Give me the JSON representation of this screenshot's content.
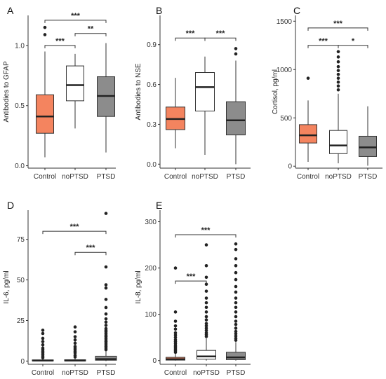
{
  "chart_data": [
    {
      "type": "box",
      "panel_label": "A",
      "ylabel": "Antibodies to GFAP",
      "categories": [
        "Control",
        "noPTSD",
        "PTSD"
      ],
      "yticks": [
        "0.0",
        "0.5",
        "1.0"
      ],
      "ytick_values": [
        0.0,
        0.5,
        1.0
      ],
      "ylim": [
        -0.02,
        1.25
      ],
      "grid": false,
      "series": [
        {
          "category": "Control",
          "color": "#f4845f",
          "whisker_low": 0.07,
          "q1": 0.27,
          "median": 0.41,
          "q3": 0.59,
          "whisker_high": 0.95,
          "outliers": [
            1.09,
            1.15
          ]
        },
        {
          "category": "noPTSD",
          "color": "#ffffff",
          "whisker_low": 0.31,
          "q1": 0.54,
          "median": 0.67,
          "q3": 0.83,
          "whisker_high": 0.93,
          "outliers": []
        },
        {
          "category": "PTSD",
          "color": "#8c8c8c",
          "whisker_low": 0.11,
          "q1": 0.41,
          "median": 0.58,
          "q3": 0.74,
          "whisker_high": 1.02,
          "outliers": []
        }
      ],
      "significance": [
        {
          "from": "Control",
          "to": "PTSD",
          "label": "***",
          "y": 1.21
        },
        {
          "from": "Control",
          "to": "noPTSD",
          "label": "***",
          "y": 1.0
        },
        {
          "from": "noPTSD",
          "to": "PTSD",
          "label": "**",
          "y": 1.1
        }
      ]
    },
    {
      "type": "box",
      "panel_label": "B",
      "ylabel": "Antibodies to NSE",
      "categories": [
        "Control",
        "noPTSD",
        "PTSD"
      ],
      "yticks": [
        "0.0",
        "0.3",
        "0.6",
        "0.9"
      ],
      "ytick_values": [
        0.0,
        0.3,
        0.6,
        0.9
      ],
      "ylim": [
        -0.03,
        1.12
      ],
      "grid": false,
      "series": [
        {
          "category": "Control",
          "color": "#f4845f",
          "whisker_low": 0.12,
          "q1": 0.26,
          "median": 0.34,
          "q3": 0.43,
          "whisker_high": 0.65,
          "outliers": []
        },
        {
          "category": "noPTSD",
          "color": "#ffffff",
          "whisker_low": 0.07,
          "q1": 0.4,
          "median": 0.58,
          "q3": 0.69,
          "whisker_high": 0.81,
          "outliers": []
        },
        {
          "category": "PTSD",
          "color": "#8c8c8c",
          "whisker_low": 0.0,
          "q1": 0.22,
          "median": 0.33,
          "q3": 0.47,
          "whisker_high": 0.78,
          "outliers": [
            0.83,
            0.87
          ]
        }
      ],
      "significance": [
        {
          "from": "Control",
          "to": "noPTSD",
          "label": "***",
          "y": 0.95
        },
        {
          "from": "noPTSD",
          "to": "PTSD",
          "label": "***",
          "y": 0.95
        }
      ]
    },
    {
      "type": "box",
      "panel_label": "C",
      "ylabel": "Cortisol, pg/ml",
      "categories": [
        "Control",
        "noPTSD",
        "PTSD"
      ],
      "yticks": [
        "0",
        "500",
        "1000",
        "1500"
      ],
      "ytick_values": [
        0,
        500,
        1000,
        1500
      ],
      "ylim": [
        -20,
        1560
      ],
      "grid": false,
      "series": [
        {
          "category": "Control",
          "color": "#f4845f",
          "whisker_low": 45,
          "q1": 240,
          "median": 320,
          "q3": 430,
          "whisker_high": 680,
          "outliers": [
            910
          ]
        },
        {
          "category": "noPTSD",
          "color": "#ffffff",
          "whisker_low": 30,
          "q1": 130,
          "median": 215,
          "q3": 370,
          "whisker_high": 750,
          "outliers": [
            790,
            830,
            870,
            910,
            950,
            990,
            1030,
            1080,
            1130,
            1185
          ]
        },
        {
          "category": "PTSD",
          "color": "#8c8c8c",
          "whisker_low": 5,
          "q1": 100,
          "median": 195,
          "q3": 310,
          "whisker_high": 620,
          "outliers": []
        }
      ],
      "significance": [
        {
          "from": "Control",
          "to": "PTSD",
          "label": "***",
          "y": 1430
        },
        {
          "from": "Control",
          "to": "noPTSD",
          "label": "***",
          "y": 1250
        },
        {
          "from": "noPTSD",
          "to": "PTSD",
          "label": "*",
          "y": 1250
        }
      ]
    },
    {
      "type": "box",
      "panel_label": "D",
      "ylabel": "IL-6, pg/ml",
      "categories": [
        "Control",
        "noPTSD",
        "PTSD"
      ],
      "yticks": [
        "0",
        "25",
        "50",
        "75"
      ],
      "ytick_values": [
        0,
        25,
        50,
        75
      ],
      "ylim": [
        -2,
        93
      ],
      "grid": false,
      "series": [
        {
          "category": "Control",
          "color": "#f4845f",
          "whisker_low": 0,
          "q1": 0.1,
          "median": 0.3,
          "q3": 0.7,
          "whisker_high": 1.5,
          "outliers": [
            2,
            3,
            4,
            5,
            6,
            7,
            8,
            10,
            12,
            14,
            17,
            19
          ]
        },
        {
          "category": "noPTSD",
          "color": "#ffffff",
          "whisker_low": 0,
          "q1": 0.1,
          "median": 0.3,
          "q3": 0.8,
          "whisker_high": 1.8,
          "outliers": [
            2.5,
            3.5,
            5,
            6,
            7,
            8,
            9,
            11,
            13,
            15,
            18,
            21
          ]
        },
        {
          "category": "PTSD",
          "color": "#8c8c8c",
          "whisker_low": 0,
          "q1": 0.5,
          "median": 1.2,
          "q3": 3,
          "whisker_high": 6.5,
          "outliers": [
            7,
            8,
            9,
            10,
            11,
            12,
            13,
            14,
            15,
            16,
            17,
            18,
            19,
            20,
            22,
            24,
            26,
            29,
            33,
            38,
            45,
            47,
            58,
            91
          ]
        }
      ],
      "significance": [
        {
          "from": "Control",
          "to": "PTSD",
          "label": "***",
          "y": 80
        },
        {
          "from": "noPTSD",
          "to": "PTSD",
          "label": "***",
          "y": 67
        }
      ]
    },
    {
      "type": "box",
      "panel_label": "E",
      "ylabel": "IL-8, pg/ml",
      "categories": [
        "Control",
        "noPTSD",
        "PTSD"
      ],
      "yticks": [
        "0",
        "100",
        "200",
        "300"
      ],
      "ytick_values": [
        0,
        100,
        200,
        300
      ],
      "ylim": [
        -8,
        325
      ],
      "grid": false,
      "series": [
        {
          "category": "Control",
          "color": "#f4845f",
          "whisker_low": 0,
          "q1": 1,
          "median": 3,
          "q3": 7,
          "whisker_high": 16,
          "outliers": [
            18,
            21,
            24,
            27,
            30,
            33,
            37,
            41,
            45,
            50,
            55,
            60,
            68,
            75,
            85,
            105,
            200
          ]
        },
        {
          "category": "noPTSD",
          "color": "#ffffff",
          "whisker_low": 0,
          "q1": 3,
          "median": 9,
          "q3": 22,
          "whisker_high": 48,
          "outliers": [
            52,
            56,
            60,
            65,
            70,
            75,
            80,
            88,
            95,
            105,
            115,
            125,
            135,
            150,
            165,
            180,
            205,
            250
          ]
        },
        {
          "category": "PTSD",
          "color": "#8c8c8c",
          "whisker_low": 0,
          "q1": 2,
          "median": 7,
          "q3": 18,
          "whisker_high": 40,
          "outliers": [
            44,
            48,
            53,
            58,
            63,
            70,
            78,
            85,
            95,
            105,
            115,
            125,
            135,
            148,
            160,
            175,
            190,
            205,
            220,
            240,
            252
          ]
        }
      ],
      "significance": [
        {
          "from": "Control",
          "to": "PTSD",
          "label": "***",
          "y": 272
        },
        {
          "from": "Control",
          "to": "noPTSD",
          "label": "***",
          "y": 172
        }
      ]
    }
  ]
}
